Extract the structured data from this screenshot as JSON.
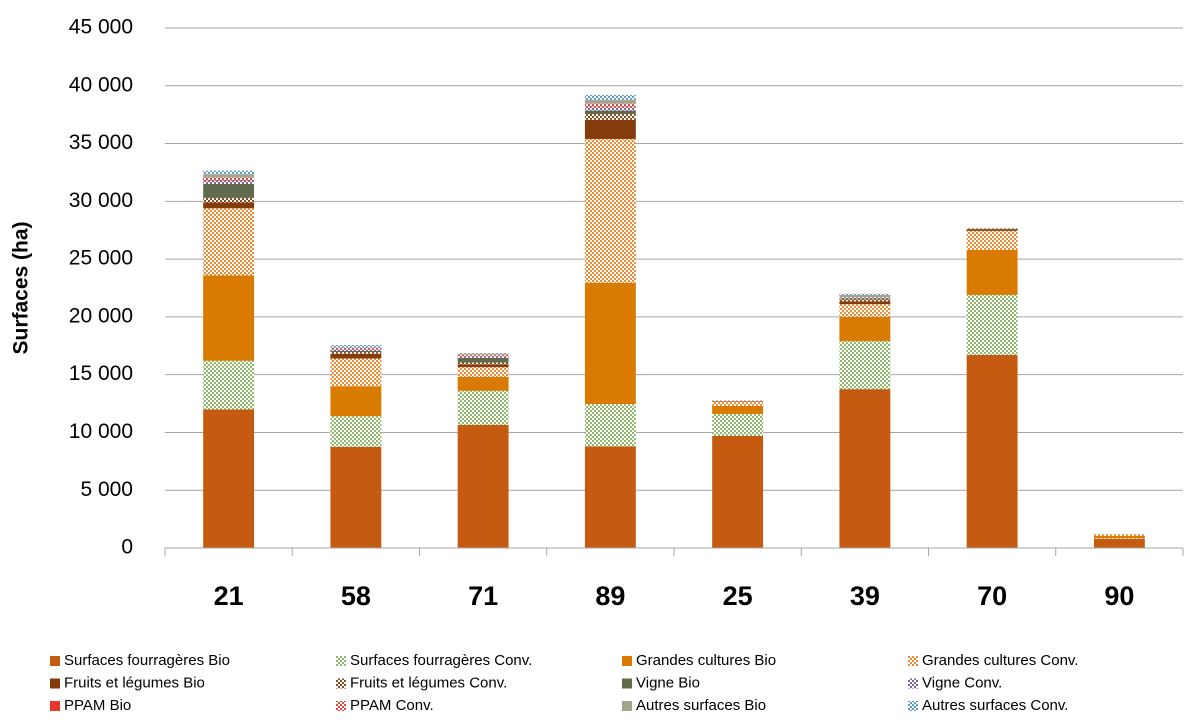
{
  "chart_data": {
    "type": "stacked_bar",
    "y_label": "Surfaces (ha)",
    "categories": [
      "21",
      "58",
      "71",
      "89",
      "25",
      "39",
      "70",
      "90"
    ],
    "ylim": [
      0,
      45000
    ],
    "yticks": [
      0,
      {
        "value": 5000,
        "label": "5 000"
      },
      {
        "value": 10000,
        "label": "10 000"
      },
      {
        "value": 15000,
        "label": "15 000"
      },
      {
        "value": 20000,
        "label": "20 000"
      },
      {
        "value": 25000,
        "label": "25 000"
      },
      {
        "value": 30000,
        "label": "30 000"
      },
      {
        "value": 35000,
        "label": "35 000"
      },
      {
        "value": 40000,
        "label": "40 000"
      },
      {
        "value": 45000,
        "label": "45 000"
      }
    ],
    "grid": true,
    "legend": "bottom",
    "series": [
      {
        "name": "Surfaces fourragères Bio",
        "color": "#c55a11",
        "values": [
          12000,
          8750,
          10650,
          8800,
          9700,
          13750,
          16700,
          800
        ]
      },
      {
        "name": "Surfaces fourragères Conv.",
        "color": "#8fb96b",
        "pattern": "checkered",
        "values": [
          4200,
          2650,
          2950,
          3650,
          1900,
          4150,
          5200,
          50
        ]
      },
      {
        "name": "Grandes cultures Bio",
        "color": "#d97b00",
        "values": [
          7400,
          2600,
          1200,
          10500,
          700,
          2100,
          3900,
          200
        ]
      },
      {
        "name": "Grandes cultures Conv.",
        "color": "#f08a30",
        "pattern": "checkered",
        "values": [
          5800,
          2400,
          850,
          12450,
          350,
          1100,
          1650,
          150
        ]
      },
      {
        "name": "Fruits et légumes Bio",
        "color": "#843c0c",
        "values": [
          500,
          400,
          250,
          1650,
          50,
          250,
          150,
          0
        ]
      },
      {
        "name": "Fruits et légumes Conv.",
        "color": "#8b4a1c",
        "pattern": "checkered",
        "values": [
          400,
          150,
          150,
          500,
          50,
          150,
          50,
          0
        ]
      },
      {
        "name": "Vigne Bio",
        "color": "#5f6b4a",
        "values": [
          1200,
          100,
          400,
          300,
          0,
          100,
          0,
          0
        ]
      },
      {
        "name": "Vigne Conv.",
        "color": "#7a64a0",
        "pattern": "checkered",
        "values": [
          300,
          150,
          150,
          300,
          0,
          50,
          0,
          0
        ]
      },
      {
        "name": "PPAM Bio",
        "color": "#e8382b",
        "values": [
          50,
          20,
          20,
          50,
          0,
          0,
          0,
          0
        ]
      },
      {
        "name": "PPAM Conv.",
        "color": "#e8483b",
        "pattern": "checkered",
        "values": [
          200,
          100,
          100,
          250,
          0,
          50,
          0,
          0
        ]
      },
      {
        "name": "Autres surfaces Bio",
        "color": "#a5a58d",
        "values": [
          300,
          50,
          100,
          350,
          0,
          200,
          0,
          0
        ]
      },
      {
        "name": "Autres surfaces Conv.",
        "color": "#5b9bd5",
        "pattern": "checkered",
        "values": [
          300,
          200,
          50,
          400,
          0,
          100,
          0,
          0
        ]
      }
    ]
  }
}
